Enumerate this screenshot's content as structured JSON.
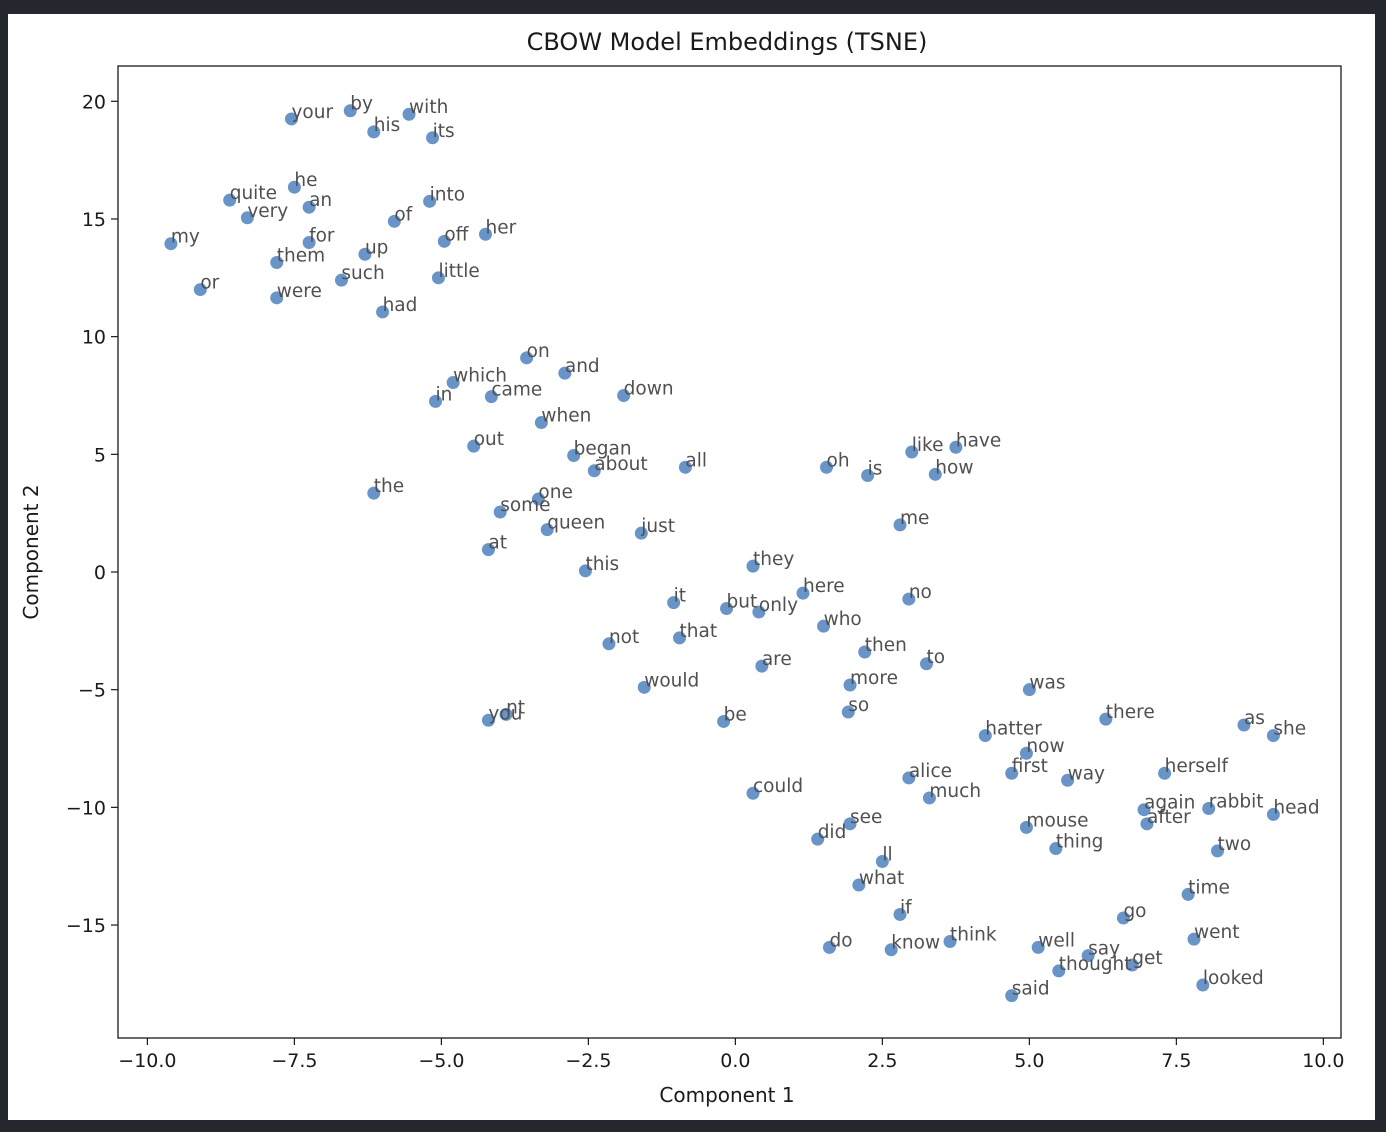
{
  "chart_data": {
    "type": "scatter",
    "title": "CBOW Model Embeddings (TSNE)",
    "xlabel": "Component 1",
    "ylabel": "Component 2",
    "xlim": [
      -10.5,
      10.3
    ],
    "ylim": [
      -19.8,
      21.5
    ],
    "xticks": [
      -10.0,
      -7.5,
      -5.0,
      -2.5,
      0.0,
      2.5,
      5.0,
      7.5,
      10.0
    ],
    "yticks": [
      20,
      15,
      10,
      5,
      0,
      -5,
      -10,
      -15
    ],
    "xtick_labels": [
      "−10.0",
      "−7.5",
      "−5.0",
      "−2.5",
      "0.0",
      "2.5",
      "5.0",
      "7.5",
      "10.0"
    ],
    "ytick_labels": [
      "20",
      "15",
      "10",
      "5",
      "0",
      "−5",
      "−10",
      "−15"
    ],
    "grid": false,
    "point_color": "#4f81bd",
    "points": [
      {
        "label": "your",
        "x": -7.55,
        "y": 19.25
      },
      {
        "label": "by",
        "x": -6.55,
        "y": 19.6
      },
      {
        "label": "his",
        "x": -6.15,
        "y": 18.7
      },
      {
        "label": "with",
        "x": -5.55,
        "y": 19.45
      },
      {
        "label": "its",
        "x": -5.15,
        "y": 18.45
      },
      {
        "label": "quite",
        "x": -8.6,
        "y": 15.8
      },
      {
        "label": "he",
        "x": -7.5,
        "y": 16.35
      },
      {
        "label": "very",
        "x": -8.3,
        "y": 15.05
      },
      {
        "label": "an",
        "x": -7.25,
        "y": 15.5
      },
      {
        "label": "into",
        "x": -5.2,
        "y": 15.75
      },
      {
        "label": "of",
        "x": -5.8,
        "y": 14.9
      },
      {
        "label": "my",
        "x": -9.6,
        "y": 13.95
      },
      {
        "label": "for",
        "x": -7.25,
        "y": 14.0
      },
      {
        "label": "off",
        "x": -4.95,
        "y": 14.05
      },
      {
        "label": "her",
        "x": -4.25,
        "y": 14.35
      },
      {
        "label": "them",
        "x": -7.8,
        "y": 13.15
      },
      {
        "label": "up",
        "x": -6.3,
        "y": 13.5
      },
      {
        "label": "such",
        "x": -6.7,
        "y": 12.4
      },
      {
        "label": "little",
        "x": -5.05,
        "y": 12.5
      },
      {
        "label": "or",
        "x": -9.1,
        "y": 12.0
      },
      {
        "label": "were",
        "x": -7.8,
        "y": 11.65
      },
      {
        "label": "had",
        "x": -6.0,
        "y": 11.05
      },
      {
        "label": "on",
        "x": -3.55,
        "y": 9.1
      },
      {
        "label": "and",
        "x": -2.9,
        "y": 8.45
      },
      {
        "label": "which",
        "x": -4.8,
        "y": 8.05
      },
      {
        "label": "came",
        "x": -4.15,
        "y": 7.45
      },
      {
        "label": "down",
        "x": -1.9,
        "y": 7.5
      },
      {
        "label": "in",
        "x": -5.1,
        "y": 7.25
      },
      {
        "label": "when",
        "x": -3.3,
        "y": 6.35
      },
      {
        "label": "out",
        "x": -4.45,
        "y": 5.35
      },
      {
        "label": "began",
        "x": -2.75,
        "y": 4.95
      },
      {
        "label": "about",
        "x": -2.4,
        "y": 4.3
      },
      {
        "label": "all",
        "x": -0.85,
        "y": 4.45
      },
      {
        "label": "oh",
        "x": 1.55,
        "y": 4.45
      },
      {
        "label": "is",
        "x": 2.25,
        "y": 4.1
      },
      {
        "label": "like",
        "x": 3.0,
        "y": 5.1
      },
      {
        "label": "have",
        "x": 3.75,
        "y": 5.3
      },
      {
        "label": "how",
        "x": 3.4,
        "y": 4.15
      },
      {
        "label": "the",
        "x": -6.15,
        "y": 3.35
      },
      {
        "label": "one",
        "x": -3.35,
        "y": 3.1
      },
      {
        "label": "some",
        "x": -4.0,
        "y": 2.55
      },
      {
        "label": "queen",
        "x": -3.2,
        "y": 1.8
      },
      {
        "label": "just",
        "x": -1.6,
        "y": 1.65
      },
      {
        "label": "me",
        "x": 2.8,
        "y": 2.0
      },
      {
        "label": "at",
        "x": -4.2,
        "y": 0.95
      },
      {
        "label": "this",
        "x": -2.55,
        "y": 0.05
      },
      {
        "label": "they",
        "x": 0.3,
        "y": 0.25
      },
      {
        "label": "here",
        "x": 1.15,
        "y": -0.9
      },
      {
        "label": "no",
        "x": 2.95,
        "y": -1.15
      },
      {
        "label": "it",
        "x": -1.05,
        "y": -1.3
      },
      {
        "label": "but",
        "x": -0.15,
        "y": -1.55
      },
      {
        "label": "only",
        "x": 0.4,
        "y": -1.7
      },
      {
        "label": "who",
        "x": 1.5,
        "y": -2.3
      },
      {
        "label": "not",
        "x": -2.15,
        "y": -3.05
      },
      {
        "label": "that",
        "x": -0.95,
        "y": -2.8
      },
      {
        "label": "then",
        "x": 2.2,
        "y": -3.4
      },
      {
        "label": "are",
        "x": 0.45,
        "y": -4.0
      },
      {
        "label": "to",
        "x": 3.25,
        "y": -3.9
      },
      {
        "label": "would",
        "x": -1.55,
        "y": -4.9
      },
      {
        "label": "more",
        "x": 1.95,
        "y": -4.8
      },
      {
        "label": "was",
        "x": 5.0,
        "y": -5.0
      },
      {
        "label": "nt",
        "x": -3.9,
        "y": -6.05
      },
      {
        "label": "you",
        "x": -4.2,
        "y": -6.3
      },
      {
        "label": "be",
        "x": -0.2,
        "y": -6.35
      },
      {
        "label": "so",
        "x": 1.92,
        "y": -5.95
      },
      {
        "label": "there",
        "x": 6.3,
        "y": -6.25
      },
      {
        "label": "as",
        "x": 8.65,
        "y": -6.5
      },
      {
        "label": "she",
        "x": 9.15,
        "y": -6.95
      },
      {
        "label": "hatter",
        "x": 4.25,
        "y": -6.95
      },
      {
        "label": "now",
        "x": 4.95,
        "y": -7.7
      },
      {
        "label": "first",
        "x": 4.7,
        "y": -8.55
      },
      {
        "label": "way",
        "x": 5.65,
        "y": -8.85
      },
      {
        "label": "herself",
        "x": 7.3,
        "y": -8.55
      },
      {
        "label": "alice",
        "x": 2.95,
        "y": -8.75
      },
      {
        "label": "much",
        "x": 3.3,
        "y": -9.6
      },
      {
        "label": "could",
        "x": 0.3,
        "y": -9.4
      },
      {
        "label": "again",
        "x": 6.95,
        "y": -10.1
      },
      {
        "label": "rabbit",
        "x": 8.05,
        "y": -10.05
      },
      {
        "label": "head",
        "x": 9.15,
        "y": -10.3
      },
      {
        "label": "after",
        "x": 7.0,
        "y": -10.7
      },
      {
        "label": "see",
        "x": 1.95,
        "y": -10.7
      },
      {
        "label": "mouse",
        "x": 4.95,
        "y": -10.85
      },
      {
        "label": "did",
        "x": 1.4,
        "y": -11.35
      },
      {
        "label": "thing",
        "x": 5.45,
        "y": -11.75
      },
      {
        "label": "two",
        "x": 8.2,
        "y": -11.85
      },
      {
        "label": "ll",
        "x": 2.5,
        "y": -12.3
      },
      {
        "label": "what",
        "x": 2.1,
        "y": -13.3
      },
      {
        "label": "time",
        "x": 7.7,
        "y": -13.7
      },
      {
        "label": "if",
        "x": 2.8,
        "y": -14.55
      },
      {
        "label": "go",
        "x": 6.6,
        "y": -14.7
      },
      {
        "label": "think",
        "x": 3.65,
        "y": -15.7
      },
      {
        "label": "went",
        "x": 7.8,
        "y": -15.6
      },
      {
        "label": "do",
        "x": 1.6,
        "y": -15.95
      },
      {
        "label": "know",
        "x": 2.65,
        "y": -16.05
      },
      {
        "label": "well",
        "x": 5.15,
        "y": -15.95
      },
      {
        "label": "say",
        "x": 6.0,
        "y": -16.3
      },
      {
        "label": "thought",
        "x": 5.5,
        "y": -16.95
      },
      {
        "label": "get",
        "x": 6.75,
        "y": -16.7
      },
      {
        "label": "looked",
        "x": 7.95,
        "y": -17.55
      },
      {
        "label": "said",
        "x": 4.7,
        "y": -18.0
      }
    ]
  }
}
